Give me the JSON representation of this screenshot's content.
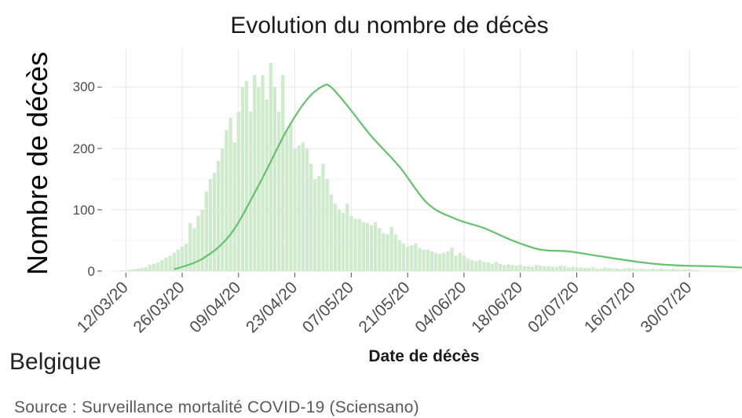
{
  "chart_data": {
    "type": "bar",
    "title": "Evolution du nombre de décès",
    "xlabel": "Date de décès",
    "ylabel": "Nombre de décès",
    "ylim": [
      0,
      345
    ],
    "yticks": [
      0,
      100,
      200,
      300
    ],
    "ytick_labels": [
      "0",
      "100",
      "200",
      "300"
    ],
    "x_start": "2020-03-10",
    "xticks": [
      "12/03/20",
      "26/03/20",
      "09/04/20",
      "23/04/20",
      "07/05/20",
      "21/05/20",
      "04/06/20",
      "18/06/20",
      "02/07/20",
      "16/07/20",
      "30/07/20"
    ],
    "grid": true,
    "colors": {
      "bars": "#cfeacc",
      "smooth_line": "#66c16e"
    },
    "series": [
      {
        "type": "bar",
        "values": [
          0,
          1,
          1,
          2,
          3,
          4,
          5,
          6,
          10,
          12,
          14,
          18,
          22,
          25,
          30,
          35,
          40,
          45,
          78,
          70,
          90,
          100,
          130,
          150,
          160,
          180,
          200,
          230,
          250,
          210,
          260,
          300,
          310,
          260,
          320,
          300,
          320,
          280,
          340,
          300,
          260,
          320,
          230,
          240,
          200,
          205,
          210,
          200,
          175,
          150,
          155,
          175,
          150,
          125,
          110,
          100,
          95,
          110,
          90,
          85,
          85,
          80,
          78,
          75,
          80,
          70,
          62,
          60,
          72,
          60,
          50,
          45,
          40,
          42,
          45,
          38,
          35,
          35,
          32,
          30,
          28,
          30,
          32,
          38,
          25,
          30,
          25,
          20,
          18,
          16,
          18,
          15,
          14,
          12,
          15,
          12,
          10,
          11,
          10,
          9,
          10,
          8,
          8,
          7,
          10,
          9,
          8,
          8,
          7,
          7,
          9,
          8,
          6,
          7,
          6,
          6,
          5,
          5,
          6,
          4,
          4,
          6,
          5,
          4,
          4,
          3,
          4,
          5,
          4,
          3,
          4,
          3,
          3,
          4,
          3,
          4,
          3,
          3,
          4,
          3,
          2,
          3,
          3,
          2,
          2
        ]
      },
      {
        "type": "line",
        "smoothed": true,
        "values": [
          [
            14,
            3
          ],
          [
            21,
            20
          ],
          [
            28,
            60
          ],
          [
            35,
            140
          ],
          [
            42,
            230
          ],
          [
            47,
            280
          ],
          [
            51,
            302
          ],
          [
            53,
            300
          ],
          [
            57,
            270
          ],
          [
            63,
            220
          ],
          [
            70,
            170
          ],
          [
            77,
            110
          ],
          [
            84,
            85
          ],
          [
            91,
            70
          ],
          [
            98,
            50
          ],
          [
            105,
            35
          ],
          [
            112,
            32
          ],
          [
            119,
            25
          ],
          [
            126,
            18
          ],
          [
            133,
            12
          ],
          [
            140,
            9
          ],
          [
            147,
            8
          ],
          [
            154,
            6
          ],
          [
            161,
            4
          ],
          [
            168,
            4
          ],
          [
            175,
            3
          ],
          [
            182,
            2
          ]
        ]
      }
    ]
  },
  "caption": "Belgique",
  "source": "Source : Surveillance mortalité COVID-19 (Sciensano)"
}
